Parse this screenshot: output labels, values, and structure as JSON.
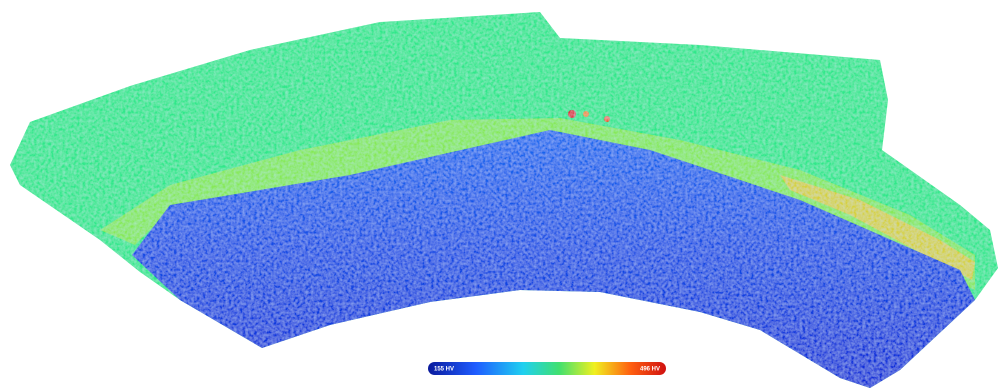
{
  "colorbar": {
    "labels": [
      "155 HV",
      "496 HV"
    ]
  }
}
